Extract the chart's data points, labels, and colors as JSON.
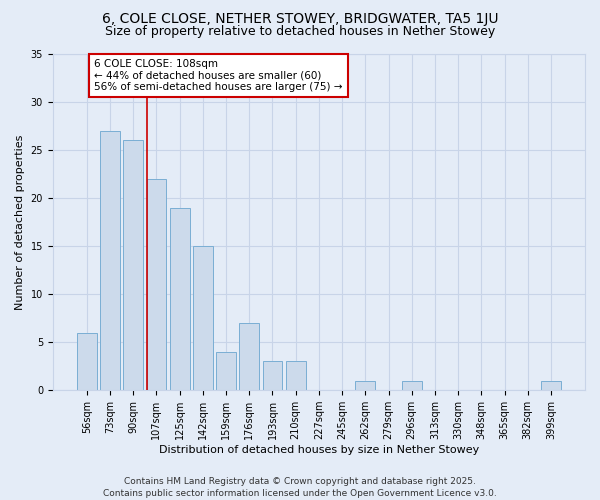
{
  "title": "6, COLE CLOSE, NETHER STOWEY, BRIDGWATER, TA5 1JU",
  "subtitle": "Size of property relative to detached houses in Nether Stowey",
  "xlabel": "Distribution of detached houses by size in Nether Stowey",
  "ylabel": "Number of detached properties",
  "categories": [
    "56sqm",
    "73sqm",
    "90sqm",
    "107sqm",
    "125sqm",
    "142sqm",
    "159sqm",
    "176sqm",
    "193sqm",
    "210sqm",
    "227sqm",
    "245sqm",
    "262sqm",
    "279sqm",
    "296sqm",
    "313sqm",
    "330sqm",
    "348sqm",
    "365sqm",
    "382sqm",
    "399sqm"
  ],
  "values": [
    6,
    27,
    26,
    22,
    19,
    15,
    4,
    7,
    3,
    3,
    0,
    0,
    1,
    0,
    1,
    0,
    0,
    0,
    0,
    0,
    1
  ],
  "bar_color": "#ccdaeb",
  "bar_edge_color": "#7aaed4",
  "red_line_index": 3,
  "annotation_text": "6 COLE CLOSE: 108sqm\n← 44% of detached houses are smaller (60)\n56% of semi-detached houses are larger (75) →",
  "annotation_box_color": "#ffffff",
  "annotation_box_edge_color": "#cc0000",
  "annotation_text_color": "#000000",
  "red_line_color": "#cc0000",
  "ylim": [
    0,
    35
  ],
  "yticks": [
    0,
    5,
    10,
    15,
    20,
    25,
    30,
    35
  ],
  "grid_color": "#c8d4e8",
  "bg_color": "#e4ecf7",
  "footer": "Contains HM Land Registry data © Crown copyright and database right 2025.\nContains public sector information licensed under the Open Government Licence v3.0.",
  "title_fontsize": 10,
  "subtitle_fontsize": 9,
  "axis_label_fontsize": 8,
  "tick_fontsize": 7,
  "annotation_fontsize": 7.5,
  "footer_fontsize": 6.5
}
